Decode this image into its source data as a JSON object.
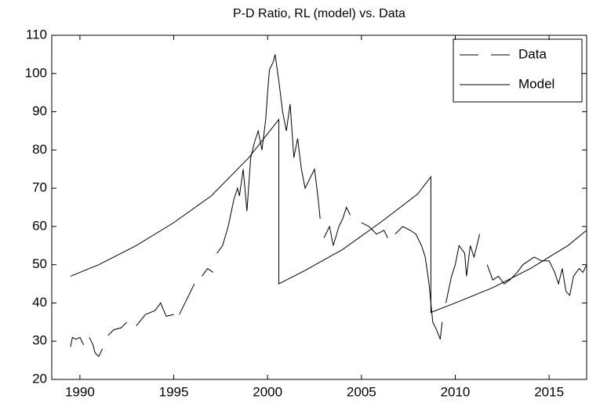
{
  "chart_data": {
    "type": "line",
    "title": "P-D Ratio, RL (model) vs. Data",
    "xlim": [
      1988.5,
      2017
    ],
    "ylim": [
      20,
      110
    ],
    "xticks": [
      1990,
      1995,
      2000,
      2005,
      2010,
      2015
    ],
    "yticks": [
      20,
      30,
      40,
      50,
      60,
      70,
      80,
      90,
      100,
      110
    ],
    "legend": "upper right",
    "series": [
      {
        "name": "Data",
        "color": "#000000",
        "linestyle": "--",
        "x": [
          1989.5,
          1989.6,
          1989.8,
          1990.0,
          1990.2,
          1990.35,
          1990.5,
          1990.7,
          1990.8,
          1991.0,
          1991.2,
          1991.35,
          1991.5,
          1991.8,
          1992.2,
          1992.5,
          1992.75,
          1993.0,
          1993.5,
          1994.0,
          1994.3,
          1994.6,
          1995.0,
          1995.15,
          1995.3,
          1995.8,
          1996.1,
          1996.3,
          1996.5,
          1996.8,
          1997.1,
          1997.2,
          1997.3,
          1997.6,
          1997.9,
          1998.2,
          1998.4,
          1998.5,
          1998.7,
          1998.9,
          1999.1,
          1999.3,
          1999.5,
          1999.7,
          1999.9,
          2000.0,
          2000.1,
          2000.3,
          2000.4,
          2000.6,
          2000.8,
          2001.0,
          2001.2,
          2001.4,
          2001.6,
          2001.8,
          2002.0,
          2002.3,
          2002.5,
          2002.7,
          2002.8,
          2002.9,
          2003.0,
          2003.3,
          2003.5,
          2003.8,
          2004.0,
          2004.2,
          2004.4,
          2004.7,
          2005.0,
          2005.4,
          2005.8,
          2006.2,
          2006.4,
          2006.6,
          2006.8,
          2007.2,
          2007.6,
          2007.9,
          2008.2,
          2008.4,
          2008.6,
          2008.8,
          2009.0,
          2009.2,
          2009.3,
          2009.4,
          2009.5,
          2009.8,
          2010.0,
          2010.2,
          2010.5,
          2010.6,
          2010.8,
          2011.0,
          2011.3,
          2011.5,
          2011.7,
          2012.0,
          2012.3,
          2012.6,
          2012.9,
          2013.3,
          2013.6,
          2013.9,
          2014.2,
          2014.6,
          2015.0,
          2015.3,
          2015.5,
          2015.7,
          2015.9,
          2016.1,
          2016.3,
          2016.6,
          2016.8,
          2017.0
        ],
        "values": [
          28.5,
          31,
          30.5,
          31,
          29,
          null,
          31,
          29,
          27,
          26,
          28,
          null,
          31.5,
          33,
          33.5,
          35,
          null,
          34,
          37,
          38,
          40,
          36.5,
          37,
          null,
          37,
          42,
          45,
          null,
          47,
          49,
          48,
          null,
          53,
          55,
          60,
          67,
          70,
          68,
          75,
          64,
          78,
          82,
          85,
          80,
          88,
          95,
          101,
          103,
          105,
          98,
          90,
          85,
          92,
          78,
          83,
          75,
          70,
          73,
          75,
          67,
          62,
          null,
          57,
          60,
          55,
          60,
          62,
          65,
          63,
          null,
          61,
          60,
          58,
          59,
          57,
          null,
          58,
          60,
          59,
          58,
          55,
          52,
          45,
          35,
          33,
          30.5,
          35,
          null,
          40,
          47,
          50,
          55,
          53,
          47,
          55,
          52,
          58,
          null,
          50,
          46,
          47,
          45,
          46,
          48,
          50,
          51,
          52,
          51,
          51,
          48,
          45,
          49,
          43,
          42,
          47,
          49,
          48,
          50
        ]
      },
      {
        "name": "Model",
        "color": "#000000",
        "linestyle": "-",
        "x": [
          1989.5,
          1991,
          1993,
          1995,
          1997,
          1999,
          2000.6,
          2000.6,
          2002,
          2004,
          2006,
          2008,
          2008.7,
          2008.7,
          2010,
          2012,
          2014,
          2016,
          2017
        ],
        "values": [
          47,
          50,
          55,
          61,
          68,
          78,
          88,
          45,
          48.5,
          54,
          61,
          68.5,
          73,
          37.5,
          40,
          44,
          49,
          55,
          59
        ]
      }
    ]
  }
}
